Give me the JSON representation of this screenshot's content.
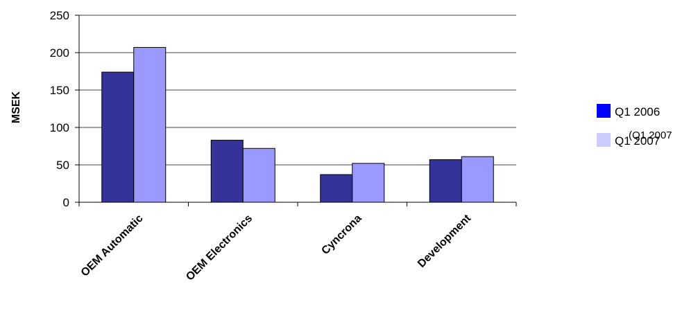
{
  "chart_data": {
    "type": "bar",
    "ylabel": "MSEK",
    "xlabel": "",
    "ylim": [
      0,
      250
    ],
    "yticks": [
      0,
      50,
      100,
      150,
      200,
      250
    ],
    "categories": [
      "OEM Automatic",
      "OEM Electronics",
      "Cyncrona",
      "Development"
    ],
    "series": [
      {
        "name": "Q1 2006",
        "values": [
          174,
          83,
          37,
          57
        ],
        "color": "#333399",
        "legend_color": "#0000ff"
      },
      {
        "name": "Q1 2007",
        "values": [
          207,
          72,
          52,
          61
        ],
        "color": "#9999ff",
        "legend_color": "#ccccff"
      }
    ],
    "legend_ghost_text": "(Q1 2007",
    "grid": true,
    "legend_position": "right"
  }
}
